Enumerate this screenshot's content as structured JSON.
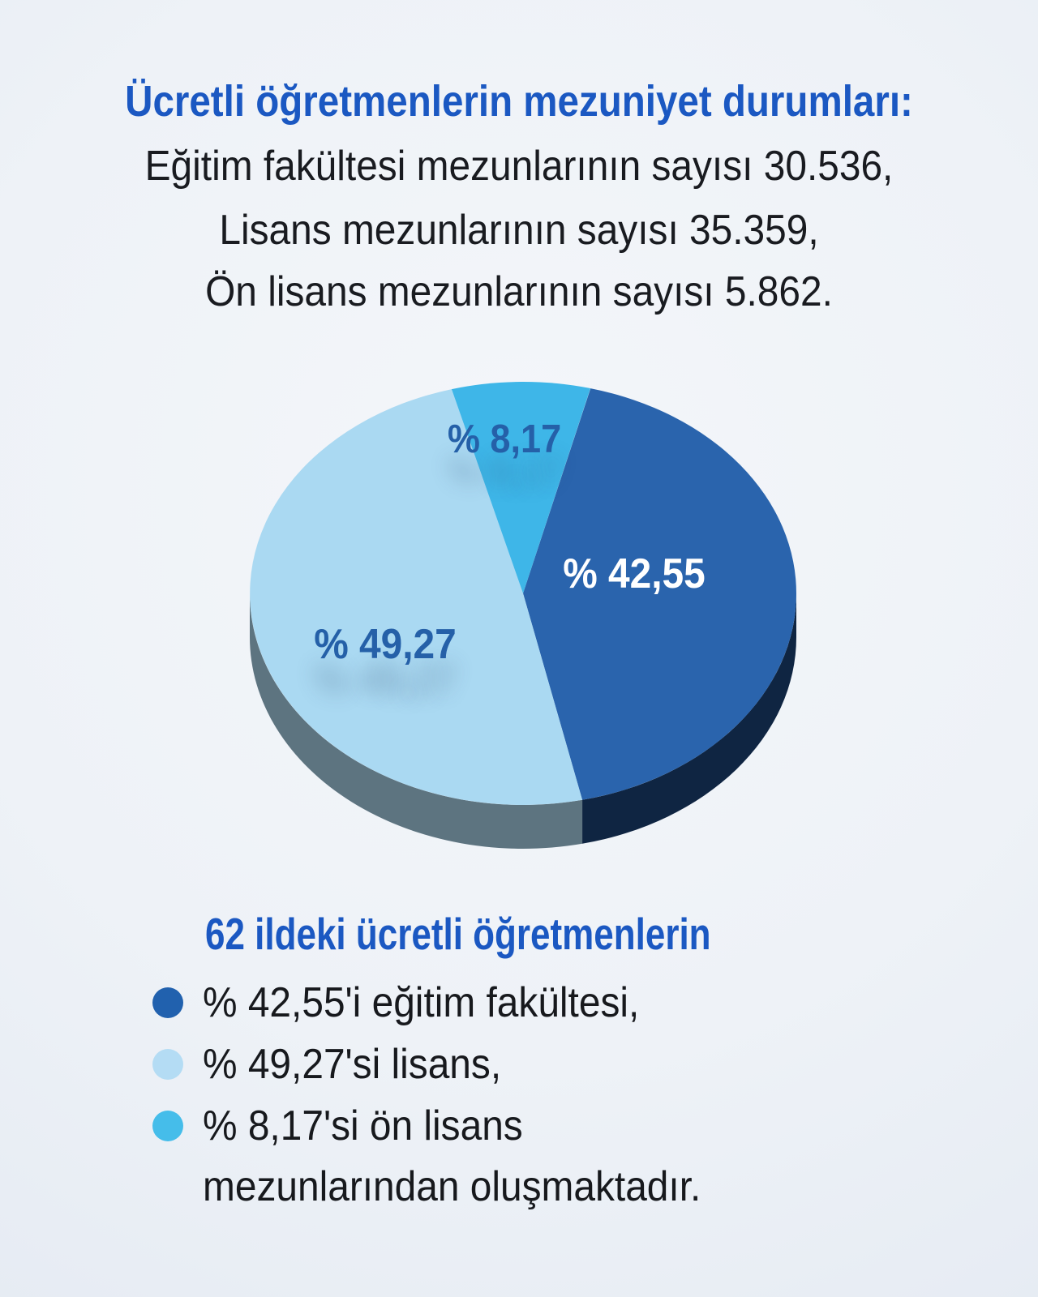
{
  "header": {
    "title": "Ücretli öğretmenlerin mezuniyet durumları:",
    "lines": [
      "Eğitim fakültesi mezunlarının sayısı 30.536,",
      "Lisans mezunlarının sayısı 35.359,",
      "Ön lisans mezunlarının sayısı 5.862."
    ]
  },
  "chart_data": {
    "type": "pie",
    "title": "Ücretli öğretmenlerin mezuniyet durumları",
    "unit": "percent",
    "start_angle_deg": 14.3,
    "legend_position": "bottom",
    "slices": [
      {
        "label": "Eğitim fakültesi",
        "value": 42.55,
        "display": "% 42,55",
        "count": "30.536",
        "color": "#2a64ad",
        "rim_color": "#0f2542",
        "label_color": "#ffffff"
      },
      {
        "label": "Lisans",
        "value": 49.27,
        "display": "% 49,27",
        "count": "35.359",
        "color": "#aad9f2",
        "rim_color": "#5d7480",
        "label_color": "#2560a8"
      },
      {
        "label": "Ön lisans",
        "value": 8.17,
        "display": "% 8,17",
        "count": "5.862",
        "color": "#3eb6e8",
        "rim_color": "#3a7d9e",
        "label_color": "#2560a8"
      }
    ]
  },
  "legend": {
    "heading": "62 ildeki ücretli öğretmenlerin",
    "items": [
      {
        "dot_color": "#2161ae",
        "text": "% 42,55'i eğitim fakültesi,"
      },
      {
        "dot_color": "#b4dcf4",
        "text": "% 49,27'si lisans,"
      },
      {
        "dot_color": "#45bdea",
        "text": "% 8,17'si ön lisans"
      },
      {
        "dot_color": "",
        "text": "mezunlarından oluşmaktadır."
      }
    ]
  },
  "colors": {
    "background": "#eef2f7",
    "accent_blue": "#1b58c2",
    "body_text": "#191b20",
    "pie_label_blue": "#2560a8"
  }
}
